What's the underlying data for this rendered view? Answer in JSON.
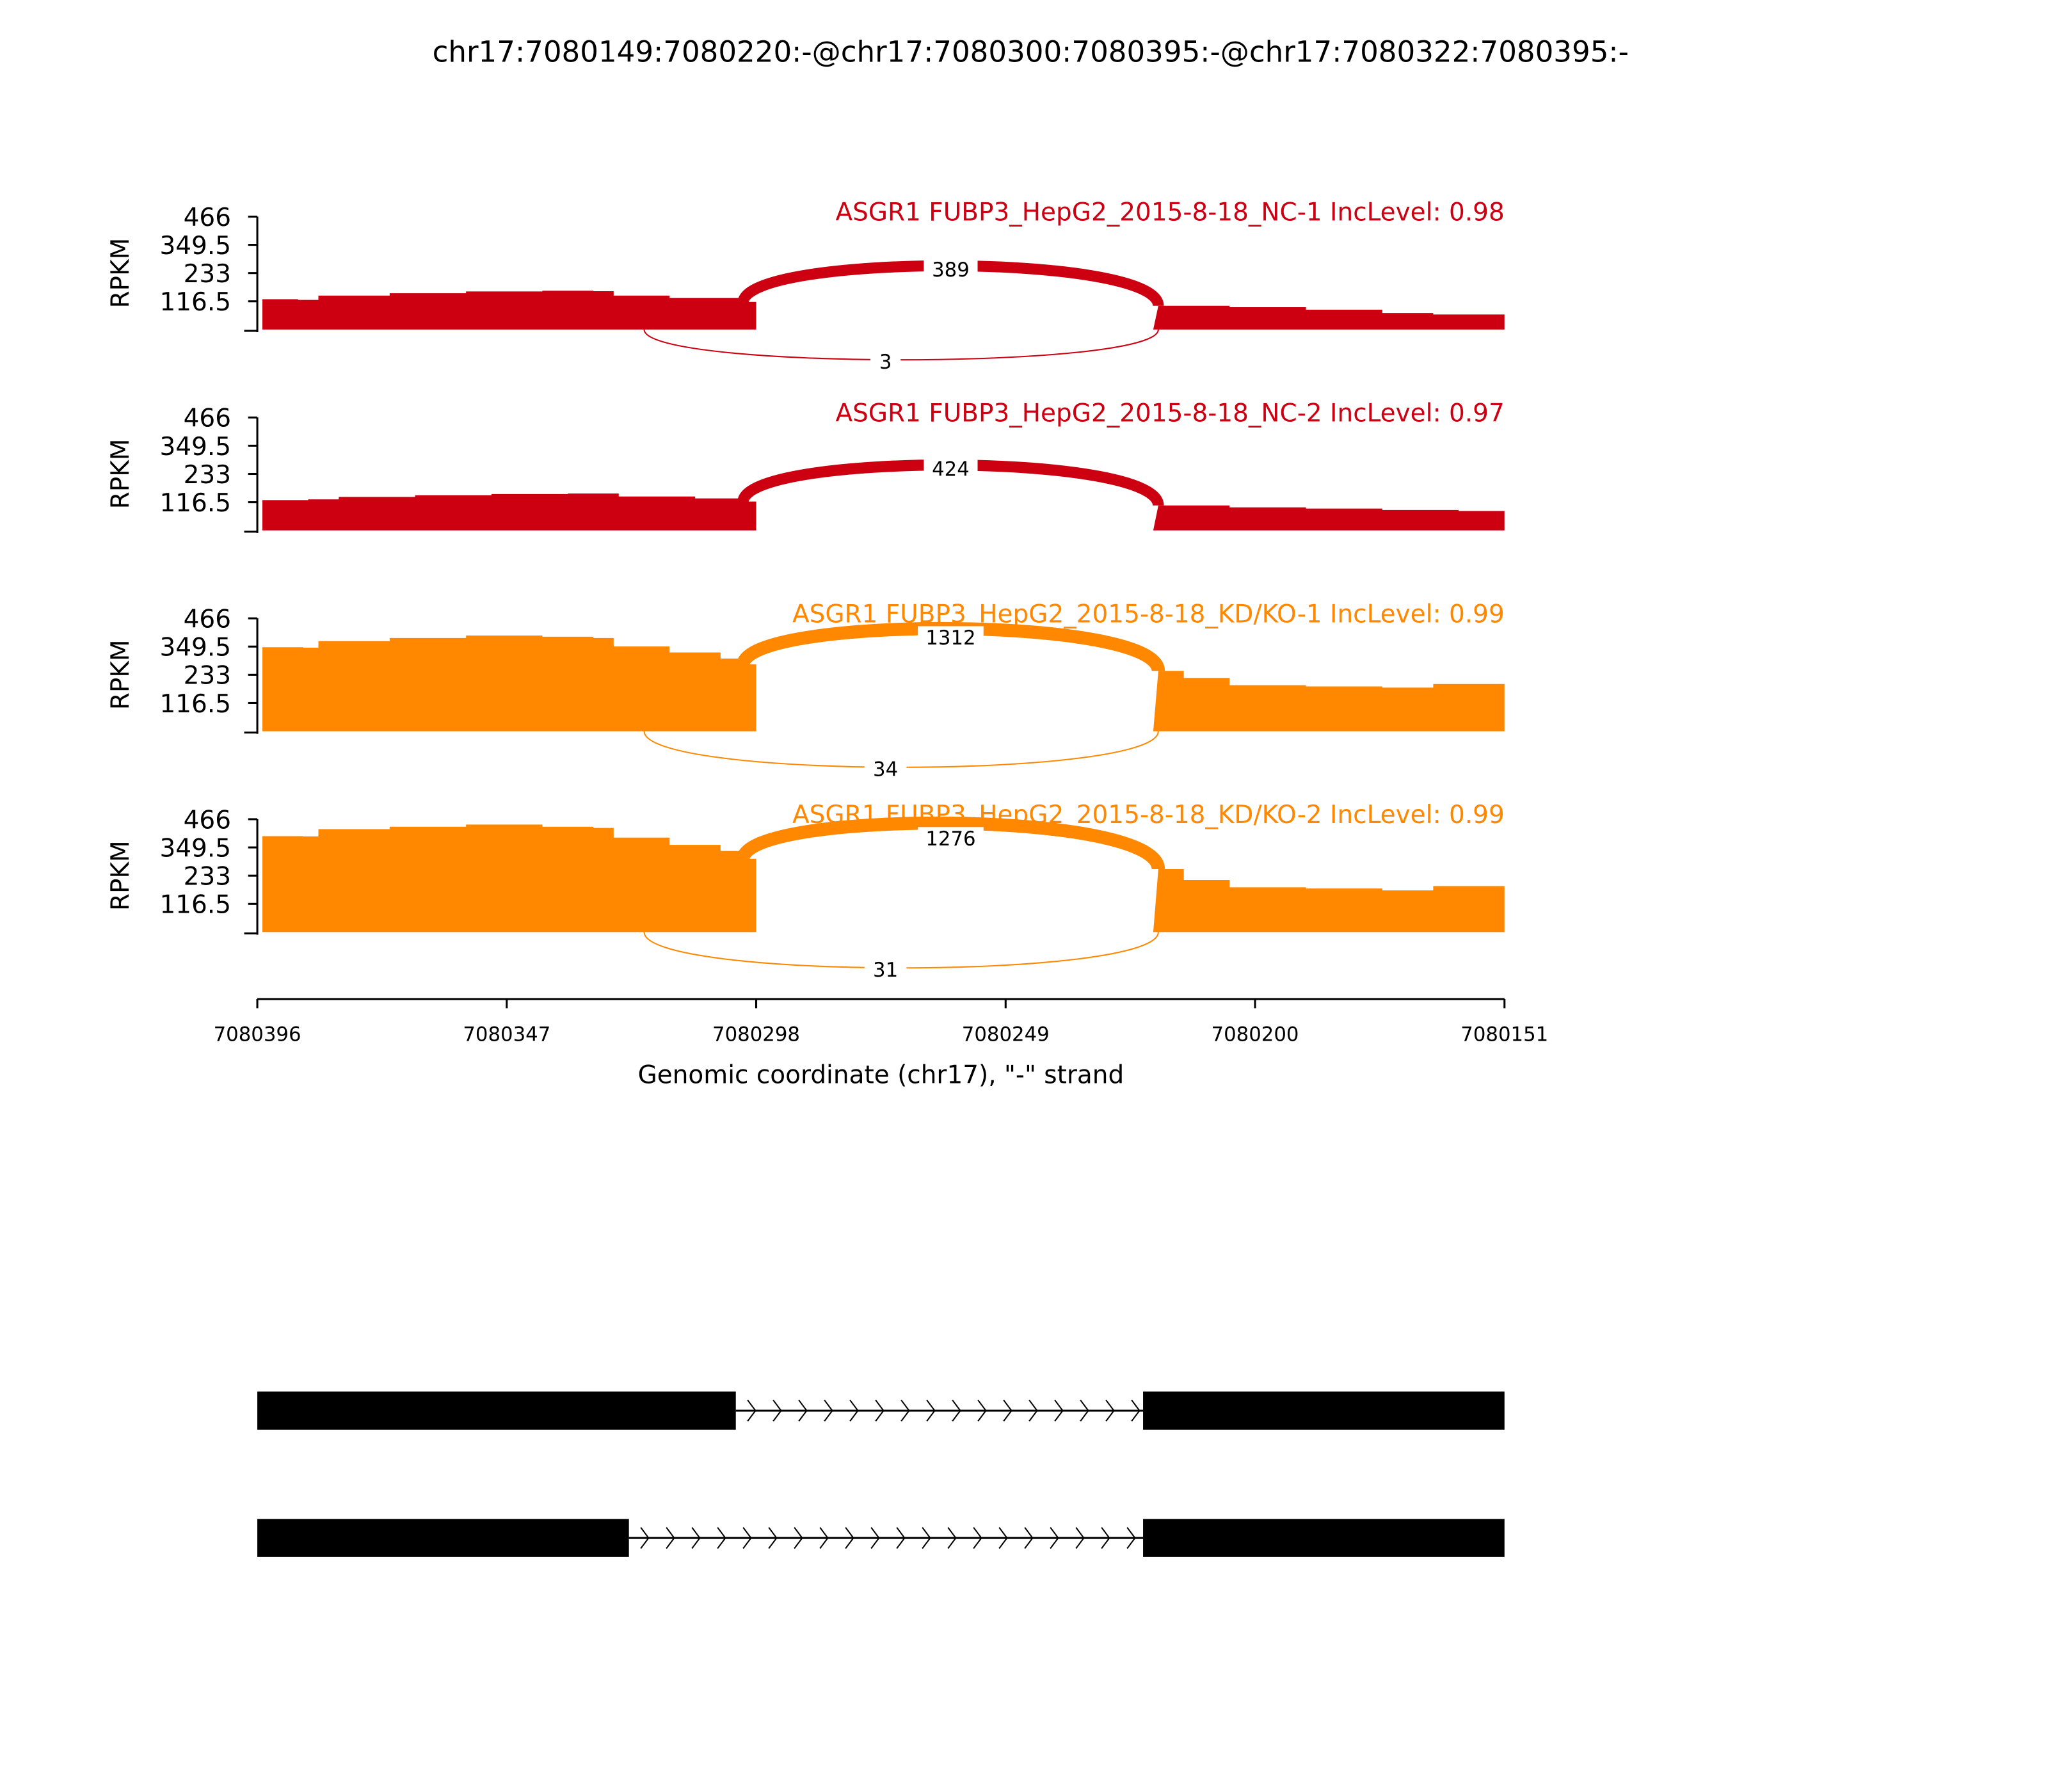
{
  "title": "chr17:7080149:7080220:-@chr17:7080300:7080395:-@chr17:7080322:7080395:-",
  "chart_data": {
    "type": "area",
    "title": "chr17:7080149:7080220:-@chr17:7080300:7080395:-@chr17:7080322:7080395:-",
    "xlabel": "Genomic coordinate (chr17), \"-\" strand",
    "ylabel": "RPKM",
    "xlim": [
      7080396,
      7080151
    ],
    "x_reversed": true,
    "ylim": [
      0,
      466
    ],
    "yticks": [
      "466",
      "349.5",
      "233",
      "116.5"
    ],
    "xticks": [
      "7080396",
      "7080347",
      "7080298",
      "7080249",
      "7080200",
      "7080151"
    ],
    "exon_regions": [
      [
        7080395,
        7080298
      ],
      [
        7080220,
        7080151
      ]
    ],
    "panels": [
      {
        "label": "ASGR1 FUBP3_HepG2_2015-8-18_NC-1 IncLevel: 0.98",
        "color": "#CC0011",
        "coverage": [
          [
            7080395,
            125
          ],
          [
            7080388,
            122
          ],
          [
            7080384,
            140
          ],
          [
            7080370,
            150
          ],
          [
            7080355,
            157
          ],
          [
            7080340,
            160
          ],
          [
            7080330,
            158
          ],
          [
            7080326,
            140
          ],
          [
            7080315,
            130
          ],
          [
            7080300,
            114
          ],
          [
            7080298,
            110
          ],
          [
            7080219,
            98
          ],
          [
            7080205,
            92
          ],
          [
            7080190,
            82
          ],
          [
            7080175,
            68
          ],
          [
            7080165,
            62
          ],
          [
            7080151,
            60
          ]
        ],
        "junctions": [
          {
            "value": "389",
            "side": "above",
            "from": 7080298,
            "to": 7080219
          },
          {
            "value": "3",
            "side": "below",
            "from": 7080320,
            "to": 7080219
          }
        ]
      },
      {
        "label": "ASGR1 FUBP3_HepG2_2015-8-18_NC-2 IncLevel: 0.97",
        "color": "#CC0011",
        "coverage": [
          [
            7080395,
            125
          ],
          [
            7080386,
            128
          ],
          [
            7080380,
            138
          ],
          [
            7080365,
            145
          ],
          [
            7080350,
            150
          ],
          [
            7080335,
            152
          ],
          [
            7080325,
            140
          ],
          [
            7080310,
            132
          ],
          [
            7080300,
            119
          ],
          [
            7080298,
            117
          ],
          [
            7080219,
            103
          ],
          [
            7080205,
            95
          ],
          [
            7080190,
            90
          ],
          [
            7080175,
            84
          ],
          [
            7080160,
            80
          ],
          [
            7080151,
            76
          ]
        ],
        "junctions": [
          {
            "value": "424",
            "side": "above",
            "from": 7080298,
            "to": 7080219
          }
        ]
      },
      {
        "label": "ASGR1 FUBP3_HepG2_2015-8-18_KD/KO-1 IncLevel: 0.99",
        "color": "#FF8800",
        "coverage": [
          [
            7080395,
            347
          ],
          [
            7080387,
            345
          ],
          [
            7080384,
            372
          ],
          [
            7080370,
            385
          ],
          [
            7080355,
            395
          ],
          [
            7080340,
            390
          ],
          [
            7080330,
            385
          ],
          [
            7080326,
            350
          ],
          [
            7080315,
            325
          ],
          [
            7080305,
            300
          ],
          [
            7080300,
            276
          ],
          [
            7080298,
            272
          ],
          [
            7080219,
            249
          ],
          [
            7080214,
            220
          ],
          [
            7080205,
            190
          ],
          [
            7080190,
            185
          ],
          [
            7080175,
            180
          ],
          [
            7080165,
            195
          ],
          [
            7080151,
            200
          ]
        ],
        "junctions": [
          {
            "value": "1312",
            "side": "above",
            "from": 7080298,
            "to": 7080219
          },
          {
            "value": "34",
            "side": "below",
            "from": 7080320,
            "to": 7080219
          }
        ]
      },
      {
        "label": "ASGR1 FUBP3_HepG2_2015-8-18_KD/KO-2 IncLevel: 0.99",
        "color": "#FF8800",
        "coverage": [
          [
            7080395,
            396
          ],
          [
            7080387,
            395
          ],
          [
            7080384,
            425
          ],
          [
            7080370,
            435
          ],
          [
            7080355,
            444
          ],
          [
            7080340,
            435
          ],
          [
            7080330,
            430
          ],
          [
            7080326,
            390
          ],
          [
            7080315,
            360
          ],
          [
            7080305,
            335
          ],
          [
            7080300,
            303
          ],
          [
            7080298,
            300
          ],
          [
            7080219,
            260
          ],
          [
            7080214,
            215
          ],
          [
            7080205,
            185
          ],
          [
            7080190,
            180
          ],
          [
            7080175,
            172
          ],
          [
            7080165,
            190
          ],
          [
            7080151,
            195
          ]
        ],
        "junctions": [
          {
            "value": "1276",
            "side": "above",
            "from": 7080298,
            "to": 7080219
          },
          {
            "value": "31",
            "side": "below",
            "from": 7080320,
            "to": 7080219
          }
        ]
      }
    ],
    "gene_models": [
      {
        "exons": [
          [
            7080396,
            7080302
          ],
          [
            7080222,
            7080151
          ]
        ]
      },
      {
        "exons": [
          [
            7080396,
            7080323
          ],
          [
            7080222,
            7080151
          ]
        ]
      }
    ]
  }
}
